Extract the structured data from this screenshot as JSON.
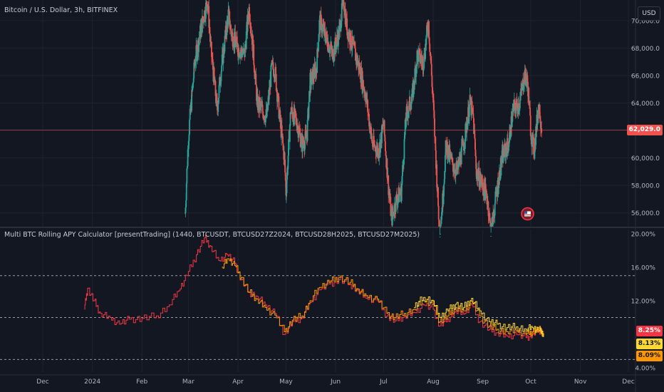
{
  "header": {
    "main_title": "Bitcoin / U.S. Dollar, 3h, BITFINEX",
    "currency_button": "USD",
    "indicator_title": "Multi BTC Rolling APY Calculator [presentTrading] (1440, BTCUSDT, BTCUSD27Z2024, BTCUSD28H2025, BTCUSD27M2025)"
  },
  "chart_data": [
    {
      "type": "candlestick",
      "title": "Bitcoin / U.S. Dollar, 3h, BITFINEX",
      "ylim": [
        55000,
        71500
      ],
      "y_ticks": [
        "70,000.0",
        "68,000.0",
        "66,000.0",
        "64,000.0",
        "62,000.0",
        "60,000.0",
        "58,000.0",
        "56,000.0"
      ],
      "y_tick_values": [
        70000,
        68000,
        66000,
        64000,
        62000,
        60000,
        58000,
        56000
      ],
      "last_price": 62029.0,
      "last_price_label": "62,029.0",
      "colors": {
        "up": "#26a69a",
        "down": "#ef5350",
        "last_line": "#ef5350"
      },
      "series_close_path": [
        [
          "2024-02-28",
          56000
        ],
        [
          "2024-03-01",
          61500
        ],
        [
          "2024-03-05",
          67000
        ],
        [
          "2024-03-09",
          69500
        ],
        [
          "2024-03-13",
          71500
        ],
        [
          "2024-03-15",
          68000
        ],
        [
          "2024-03-19",
          63500
        ],
        [
          "2024-03-21",
          66000
        ],
        [
          "2024-03-26",
          70500
        ],
        [
          "2024-03-28",
          69000
        ],
        [
          "2024-04-01",
          68000
        ],
        [
          "2024-04-05",
          67500
        ],
        [
          "2024-04-08",
          71000
        ],
        [
          "2024-04-10",
          68500
        ],
        [
          "2024-04-13",
          64000
        ],
        [
          "2024-04-16",
          63500
        ],
        [
          "2024-04-19",
          63000
        ],
        [
          "2024-04-22",
          66500
        ],
        [
          "2024-04-24",
          66500
        ],
        [
          "2024-04-27",
          63000
        ],
        [
          "2024-04-30",
          60000
        ],
        [
          "2024-05-01",
          57500
        ],
        [
          "2024-05-04",
          63500
        ],
        [
          "2024-05-08",
          62500
        ],
        [
          "2024-05-11",
          61000
        ],
        [
          "2024-05-14",
          61500
        ],
        [
          "2024-05-16",
          65500
        ],
        [
          "2024-05-20",
          66500
        ],
        [
          "2024-05-22",
          70000
        ],
        [
          "2024-05-27",
          68500
        ],
        [
          "2024-05-30",
          67500
        ],
        [
          "2024-06-03",
          69000
        ],
        [
          "2024-06-06",
          71500
        ],
        [
          "2024-06-08",
          69500
        ],
        [
          "2024-06-12",
          68000
        ],
        [
          "2024-06-16",
          66500
        ],
        [
          "2024-06-20",
          64500
        ],
        [
          "2024-06-24",
          61000
        ],
        [
          "2024-06-28",
          60500
        ],
        [
          "2024-07-01",
          62500
        ],
        [
          "2024-07-04",
          58000
        ],
        [
          "2024-07-06",
          55500
        ],
        [
          "2024-07-09",
          57000
        ],
        [
          "2024-07-12",
          57500
        ],
        [
          "2024-07-15",
          63000
        ],
        [
          "2024-07-19",
          64500
        ],
        [
          "2024-07-22",
          67500
        ],
        [
          "2024-07-26",
          67000
        ],
        [
          "2024-07-29",
          70000
        ],
        [
          "2024-08-01",
          64000
        ],
        [
          "2024-08-05",
          54500
        ],
        [
          "2024-08-07",
          57000
        ],
        [
          "2024-08-09",
          61000
        ],
        [
          "2024-08-13",
          59500
        ],
        [
          "2024-08-16",
          59000
        ],
        [
          "2024-08-20",
          61000
        ],
        [
          "2024-08-24",
          64000
        ],
        [
          "2024-08-26",
          63000
        ],
        [
          "2024-08-28",
          59000
        ],
        [
          "2024-09-01",
          58000
        ],
        [
          "2024-09-04",
          57000
        ],
        [
          "2024-09-06",
          54500
        ],
        [
          "2024-09-09",
          57000
        ],
        [
          "2024-09-13",
          60000
        ],
        [
          "2024-09-17",
          61000
        ],
        [
          "2024-09-20",
          63500
        ],
        [
          "2024-09-24",
          64000
        ],
        [
          "2024-09-27",
          66000
        ],
        [
          "2024-09-29",
          65500
        ],
        [
          "2024-10-01",
          62000
        ],
        [
          "2024-10-03",
          60500
        ],
        [
          "2024-10-06",
          64000
        ],
        [
          "2024-10-08",
          62029
        ]
      ]
    },
    {
      "type": "line",
      "title": "Multi BTC Rolling APY Calculator [presentTrading] (1440, BTCUSDT, BTCUSD27Z2024, BTCUSD28H2025, BTCUSD27M2025)",
      "ylim": [
        3.5,
        20.5
      ],
      "y_ticks": [
        "20.00%",
        "16.00%",
        "12.00%",
        "4.00%"
      ],
      "y_tick_values": [
        20,
        16,
        12,
        4
      ],
      "hlines": [
        15,
        10,
        5
      ],
      "x_ticks": [
        "Dec",
        "2024",
        "Feb",
        "Mar",
        "Apr",
        "May",
        "Jun",
        "Jul",
        "Aug",
        "Sep",
        "Oct",
        "Nov",
        "Dec"
      ],
      "x_tick_dates": [
        "2023-12-01",
        "2024-01-01",
        "2024-02-01",
        "2024-03-01",
        "2024-04-01",
        "2024-05-01",
        "2024-06-01",
        "2024-07-01",
        "2024-08-01",
        "2024-09-01",
        "2024-10-01",
        "2024-11-01",
        "2024-12-01"
      ],
      "series": [
        {
          "color": "#f23645",
          "last_label": "8.25%",
          "points": [
            [
              "2023-12-27",
              11.0
            ],
            [
              "2023-12-29",
              13.5
            ],
            [
              "2024-01-02",
              12.0
            ],
            [
              "2024-01-06",
              10.5
            ],
            [
              "2024-01-12",
              10.0
            ],
            [
              "2024-01-18",
              9.2
            ],
            [
              "2024-01-24",
              9.8
            ],
            [
              "2024-02-01",
              9.9
            ],
            [
              "2024-02-10",
              10.2
            ],
            [
              "2024-02-18",
              11.5
            ],
            [
              "2024-02-24",
              13.2
            ],
            [
              "2024-02-29",
              15.0
            ],
            [
              "2024-03-06",
              17.5
            ],
            [
              "2024-03-11",
              19.5
            ],
            [
              "2024-03-15",
              18.5
            ],
            [
              "2024-03-20",
              16.8
            ],
            [
              "2024-03-25",
              17.5
            ],
            [
              "2024-03-30",
              16.5
            ],
            [
              "2024-04-03",
              14.5
            ],
            [
              "2024-04-08",
              13.0
            ],
            [
              "2024-04-13",
              12.5
            ],
            [
              "2024-04-18",
              11.5
            ],
            [
              "2024-04-24",
              10.5
            ],
            [
              "2024-04-30",
              8.0
            ],
            [
              "2024-05-05",
              9.5
            ],
            [
              "2024-05-11",
              10.0
            ],
            [
              "2024-05-16",
              11.8
            ],
            [
              "2024-05-22",
              13.3
            ],
            [
              "2024-05-28",
              14.0
            ],
            [
              "2024-06-03",
              14.5
            ],
            [
              "2024-06-10",
              14.0
            ],
            [
              "2024-06-15",
              13.2
            ],
            [
              "2024-06-20",
              12.3
            ],
            [
              "2024-06-27",
              12.0
            ],
            [
              "2024-07-03",
              10.2
            ],
            [
              "2024-07-08",
              9.6
            ],
            [
              "2024-07-14",
              10.2
            ],
            [
              "2024-07-20",
              10.6
            ],
            [
              "2024-07-26",
              11.5
            ],
            [
              "2024-08-01",
              11.0
            ],
            [
              "2024-08-05",
              9.0
            ],
            [
              "2024-08-10",
              9.8
            ],
            [
              "2024-08-15",
              10.8
            ],
            [
              "2024-08-20",
              10.4
            ],
            [
              "2024-08-25",
              11.5
            ],
            [
              "2024-08-30",
              9.5
            ],
            [
              "2024-09-05",
              8.6
            ],
            [
              "2024-09-10",
              8.2
            ],
            [
              "2024-09-16",
              7.8
            ],
            [
              "2024-09-22",
              8.0
            ],
            [
              "2024-09-28",
              7.6
            ],
            [
              "2024-10-02",
              8.0
            ],
            [
              "2024-10-06",
              8.5
            ],
            [
              "2024-10-09",
              8.25
            ]
          ]
        },
        {
          "color": "#ff9800",
          "last_label": "8.09%",
          "points": [
            [
              "2024-03-22",
              16.0
            ],
            [
              "2024-03-26",
              17.0
            ],
            [
              "2024-03-30",
              16.2
            ],
            [
              "2024-04-03",
              14.8
            ],
            [
              "2024-04-08",
              13.0
            ],
            [
              "2024-04-13",
              12.2
            ],
            [
              "2024-04-18",
              11.2
            ],
            [
              "2024-04-24",
              10.3
            ],
            [
              "2024-04-30",
              8.3
            ],
            [
              "2024-05-05",
              9.7
            ],
            [
              "2024-05-11",
              10.2
            ],
            [
              "2024-05-16",
              12.0
            ],
            [
              "2024-05-22",
              13.6
            ],
            [
              "2024-05-28",
              14.2
            ],
            [
              "2024-06-03",
              14.8
            ],
            [
              "2024-06-10",
              14.2
            ],
            [
              "2024-06-15",
              13.4
            ],
            [
              "2024-06-20",
              12.6
            ],
            [
              "2024-06-27",
              12.2
            ],
            [
              "2024-07-03",
              10.5
            ],
            [
              "2024-07-08",
              10.0
            ],
            [
              "2024-07-14",
              10.5
            ],
            [
              "2024-07-20",
              11.0
            ],
            [
              "2024-07-26",
              12.0
            ],
            [
              "2024-08-01",
              11.6
            ],
            [
              "2024-08-05",
              9.5
            ],
            [
              "2024-08-10",
              10.2
            ],
            [
              "2024-08-15",
              11.2
            ],
            [
              "2024-08-20",
              10.8
            ],
            [
              "2024-08-25",
              11.9
            ],
            [
              "2024-08-30",
              10.2
            ],
            [
              "2024-09-05",
              9.0
            ],
            [
              "2024-09-10",
              8.6
            ],
            [
              "2024-09-16",
              8.3
            ],
            [
              "2024-09-22",
              8.4
            ],
            [
              "2024-09-28",
              8.0
            ],
            [
              "2024-10-02",
              8.3
            ],
            [
              "2024-10-06",
              8.6
            ],
            [
              "2024-10-09",
              8.09
            ]
          ]
        },
        {
          "color": "#fdd835",
          "last_label": "8.13%",
          "points": [
            [
              "2024-07-20",
              11.2
            ],
            [
              "2024-07-26",
              12.4
            ],
            [
              "2024-08-01",
              12.0
            ],
            [
              "2024-08-05",
              10.0
            ],
            [
              "2024-08-10",
              10.8
            ],
            [
              "2024-08-15",
              11.6
            ],
            [
              "2024-08-20",
              11.2
            ],
            [
              "2024-08-25",
              12.3
            ],
            [
              "2024-08-30",
              10.8
            ],
            [
              "2024-09-05",
              9.5
            ],
            [
              "2024-09-10",
              9.2
            ],
            [
              "2024-09-16",
              8.8
            ],
            [
              "2024-09-22",
              8.9
            ],
            [
              "2024-09-28",
              8.6
            ],
            [
              "2024-10-02",
              8.8
            ],
            [
              "2024-10-06",
              8.4
            ],
            [
              "2024-10-09",
              8.13
            ]
          ]
        }
      ]
    }
  ]
}
